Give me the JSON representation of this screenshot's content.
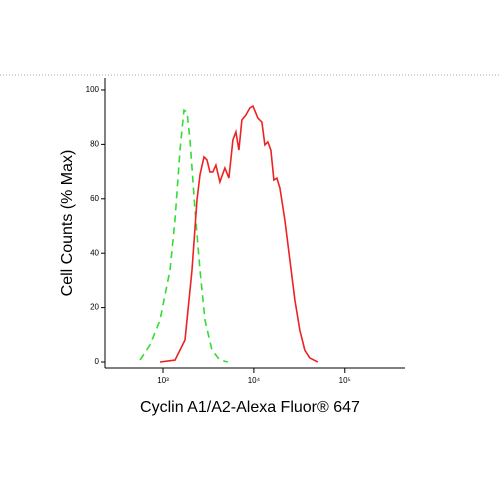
{
  "chart_data": {
    "type": "line",
    "x_label": "Cyclin A1/A2-Alexa Fluor® 647",
    "y_label": "Cell Counts (% Max)",
    "x_log": true,
    "xlim": [
      230,
      460000
    ],
    "ylim": [
      -2.2,
      104.4
    ],
    "xticks": [
      {
        "value": 1000,
        "label": "10³"
      },
      {
        "value": 10000,
        "label": "10⁴"
      },
      {
        "value": 100000,
        "label": "10⁵"
      }
    ],
    "yticks": [
      0,
      20,
      40,
      60,
      80,
      100
    ],
    "series": [
      {
        "color": "#33dd33",
        "dash": true,
        "x": [
          558,
          720,
          927,
          1194,
          1355,
          1538,
          1702,
          1836,
          1982,
          2249,
          2551,
          2895,
          3454,
          4229,
          5179
        ],
        "values": [
          0.7,
          6.3,
          15.4,
          33.8,
          52.2,
          77.9,
          92.6,
          91.9,
          81.6,
          55.9,
          33.8,
          15.4,
          4.4,
          0.7,
          0
        ]
      },
      {
        "color": "#ee2222",
        "dash": false,
        "x": [
          927,
          1355,
          1746,
          2083,
          2364,
          2551,
          2825,
          3046,
          3284,
          3540,
          3822,
          4229,
          4801,
          5309,
          5875,
          6339,
          6842,
          7379,
          8166,
          9036,
          9750,
          11066,
          12246,
          13213,
          14256,
          15382,
          16596,
          17906,
          19320,
          21928,
          24888,
          28248,
          31989,
          36308,
          41210,
          50466
        ],
        "values": [
          0,
          0.7,
          8.1,
          33.8,
          59.6,
          68.8,
          75.4,
          74.3,
          69.9,
          69.9,
          72.4,
          66.2,
          71.3,
          67.6,
          81.6,
          84.6,
          77.9,
          89,
          90.8,
          93.4,
          94.1,
          89.7,
          88.2,
          79.8,
          80.9,
          77.9,
          66.9,
          67.6,
          64,
          52.2,
          37.5,
          22.8,
          11.8,
          4.4,
          1.5,
          0
        ]
      }
    ]
  }
}
